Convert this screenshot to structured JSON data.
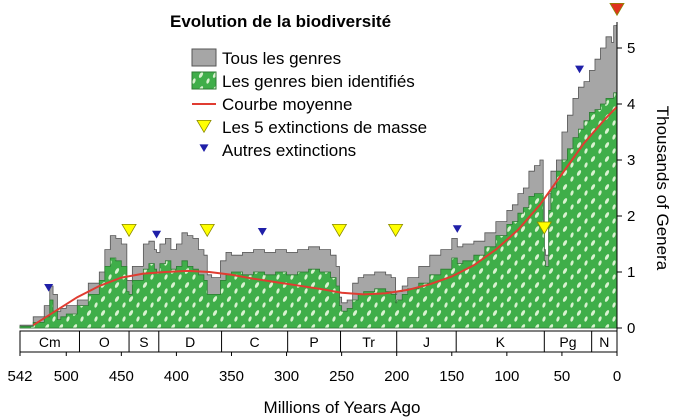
{
  "chart_data": {
    "type": "area",
    "title": "Evolution de la biodiversité",
    "xlabel": "Millions of Years Ago",
    "ylabel": "Thousands of Genera",
    "xlim": [
      542,
      0
    ],
    "ylim": [
      0,
      5.5
    ],
    "x_ticks": [
      542,
      500,
      450,
      400,
      350,
      300,
      250,
      200,
      150,
      100,
      50,
      0
    ],
    "y_ticks": [
      0,
      1,
      2,
      3,
      4,
      5
    ],
    "colors": {
      "all_genera": "#a6a6a6",
      "well_resolved": "#3fae49",
      "trend": "#e03c31",
      "mass_extinction": "#ffff00",
      "other_extinction": "#1f1fa8",
      "present_marker": "#e0321e"
    },
    "series": [
      {
        "name": "Tous les genres",
        "x": [
          542,
          530,
          520,
          515,
          512,
          508,
          505,
          500,
          490,
          480,
          470,
          465,
          460,
          455,
          450,
          445,
          443,
          440,
          430,
          425,
          420,
          418,
          415,
          410,
          405,
          400,
          395,
          390,
          385,
          380,
          375,
          372,
          368,
          360,
          355,
          350,
          340,
          330,
          320,
          310,
          300,
          290,
          280,
          270,
          260,
          255,
          252,
          250,
          245,
          240,
          235,
          230,
          220,
          210,
          205,
          201,
          200,
          195,
          190,
          180,
          170,
          160,
          150,
          145,
          140,
          130,
          120,
          110,
          100,
          95,
          90,
          85,
          80,
          75,
          70,
          67,
          66,
          65,
          62,
          60,
          55,
          50,
          45,
          40,
          35,
          30,
          25,
          20,
          15,
          10,
          5,
          3,
          0
        ],
        "values": [
          0.05,
          0.2,
          0.4,
          0.75,
          0.6,
          0.3,
          0.35,
          0.4,
          0.5,
          0.8,
          1.0,
          1.4,
          1.65,
          1.6,
          1.5,
          0.85,
          0.85,
          1.1,
          1.5,
          1.55,
          1.4,
          1.35,
          1.5,
          1.6,
          1.4,
          1.5,
          1.7,
          1.65,
          1.6,
          1.4,
          1.3,
          0.95,
          0.9,
          1.2,
          1.35,
          1.3,
          1.35,
          1.4,
          1.35,
          1.4,
          1.35,
          1.4,
          1.45,
          1.4,
          1.3,
          1.1,
          0.55,
          0.45,
          0.5,
          0.8,
          0.9,
          0.95,
          1.0,
          0.95,
          0.9,
          0.6,
          0.65,
          0.75,
          0.9,
          1.1,
          1.3,
          1.4,
          1.6,
          1.45,
          1.5,
          1.55,
          1.7,
          1.9,
          2.1,
          2.2,
          2.4,
          2.5,
          2.8,
          2.9,
          3.0,
          2.3,
          1.4,
          1.3,
          2.4,
          2.8,
          3.0,
          3.5,
          3.8,
          4.1,
          4.3,
          4.4,
          4.6,
          4.8,
          5.0,
          5.2,
          5.1,
          5.4,
          5.3
        ]
      },
      {
        "name": "Les genres bien identifiés",
        "x": [
          542,
          530,
          520,
          515,
          512,
          508,
          505,
          500,
          490,
          480,
          470,
          465,
          460,
          455,
          450,
          445,
          443,
          440,
          430,
          425,
          420,
          418,
          415,
          410,
          405,
          400,
          395,
          390,
          385,
          380,
          375,
          372,
          368,
          360,
          355,
          350,
          340,
          330,
          320,
          310,
          300,
          290,
          280,
          270,
          260,
          255,
          252,
          250,
          245,
          240,
          235,
          230,
          220,
          210,
          205,
          201,
          200,
          195,
          190,
          180,
          170,
          160,
          150,
          145,
          140,
          130,
          120,
          110,
          100,
          95,
          90,
          85,
          80,
          75,
          70,
          67,
          66,
          65,
          62,
          60,
          55,
          50,
          45,
          40,
          35,
          30,
          25,
          20,
          15,
          10,
          5,
          3,
          0
        ],
        "values": [
          0.03,
          0.1,
          0.2,
          0.5,
          0.3,
          0.15,
          0.2,
          0.25,
          0.4,
          0.6,
          0.85,
          1.1,
          1.25,
          1.2,
          1.1,
          0.65,
          0.6,
          0.85,
          1.05,
          1.15,
          1.05,
          1.0,
          1.15,
          1.2,
          1.05,
          1.1,
          1.2,
          1.1,
          1.05,
          0.95,
          0.85,
          0.6,
          0.6,
          0.85,
          0.95,
          1.0,
          0.95,
          1.0,
          0.95,
          1.0,
          0.95,
          1.0,
          1.05,
          1.0,
          0.9,
          0.75,
          0.4,
          0.3,
          0.35,
          0.5,
          0.6,
          0.65,
          0.7,
          0.65,
          0.6,
          0.45,
          0.5,
          0.6,
          0.7,
          0.8,
          0.95,
          1.05,
          1.25,
          1.15,
          1.2,
          1.3,
          1.45,
          1.65,
          1.85,
          1.9,
          2.05,
          2.15,
          2.35,
          2.4,
          2.4,
          1.8,
          1.2,
          1.1,
          2.1,
          2.5,
          2.8,
          3.0,
          3.2,
          3.4,
          3.55,
          3.7,
          3.85,
          3.9,
          4.0,
          4.1,
          4.1,
          4.2,
          4.2
        ]
      },
      {
        "name": "Courbe moyenne",
        "x": [
          530,
          510,
          490,
          470,
          450,
          430,
          410,
          390,
          370,
          350,
          330,
          310,
          290,
          270,
          250,
          230,
          210,
          190,
          170,
          150,
          130,
          110,
          90,
          70,
          50,
          30,
          10,
          0
        ],
        "values": [
          0.05,
          0.3,
          0.55,
          0.75,
          0.9,
          0.97,
          1.0,
          1.02,
          1.0,
          0.95,
          0.88,
          0.82,
          0.76,
          0.7,
          0.63,
          0.6,
          0.62,
          0.68,
          0.78,
          0.92,
          1.12,
          1.4,
          1.75,
          2.2,
          2.75,
          3.3,
          3.75,
          3.95
        ]
      }
    ],
    "mass_extinctions_ma": [
      443,
      372,
      252,
      201,
      66
    ],
    "other_extinctions_ma": [
      516,
      418,
      322,
      145,
      34
    ],
    "periods": [
      {
        "label": "Cm",
        "start": 542,
        "end": 488
      },
      {
        "label": "O",
        "start": 488,
        "end": 443
      },
      {
        "label": "S",
        "start": 443,
        "end": 416
      },
      {
        "label": "D",
        "start": 416,
        "end": 359
      },
      {
        "label": "C",
        "start": 359,
        "end": 299
      },
      {
        "label": "P",
        "start": 299,
        "end": 251
      },
      {
        "label": "Tr",
        "start": 251,
        "end": 200
      },
      {
        "label": "J",
        "start": 200,
        "end": 146
      },
      {
        "label": "K",
        "start": 146,
        "end": 66
      },
      {
        "label": "Pg",
        "start": 66,
        "end": 23
      },
      {
        "label": "N",
        "start": 23,
        "end": 0
      }
    ],
    "legend": {
      "placement": "top-left",
      "items": [
        {
          "label": "Tous les genres",
          "symbol": "gray-box"
        },
        {
          "label": "Les genres bien identifiés",
          "symbol": "green-box"
        },
        {
          "label": "Courbe moyenne",
          "symbol": "red-line"
        },
        {
          "label": "Les 5 extinctions de masse",
          "symbol": "yellow-triangle"
        },
        {
          "label": "Autres extinctions",
          "symbol": "blue-triangle"
        }
      ]
    },
    "grid": false
  }
}
